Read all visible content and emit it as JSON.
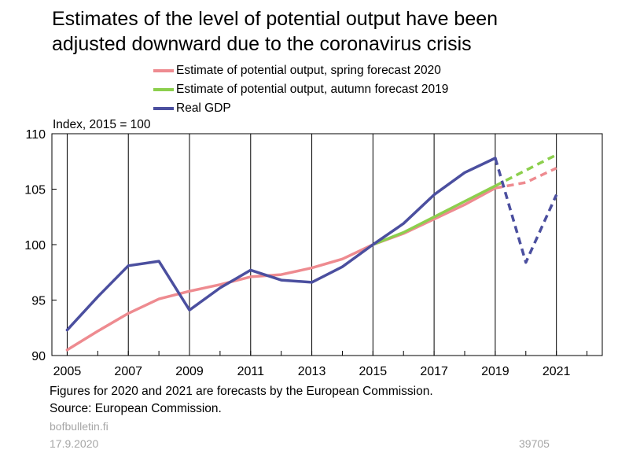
{
  "colors": {
    "spring": "#ee8b90",
    "autumn": "#8ccf4d",
    "gdp": "#4b4f9f"
  },
  "chart_data": {
    "type": "line",
    "title": "Estimates of the level of potential output have been adjusted downward due to the coronavirus crisis",
    "title_lines": [
      "Estimates of the level of potential output have been",
      "adjusted downward due to the coronavirus crisis"
    ],
    "ylabel": "Index, 2015 = 100",
    "ylim": [
      90,
      110
    ],
    "yticks": [
      "90",
      "95",
      "100",
      "105",
      "110"
    ],
    "xlim": [
      2004.5,
      2022.5
    ],
    "xticks": [
      "2005",
      "2007",
      "2009",
      "2011",
      "2013",
      "2015",
      "2017",
      "2019",
      "2021"
    ],
    "grid": "vertical at labeled years",
    "legend_position": "top",
    "forecast_from": 2019,
    "series": [
      {
        "name": "Estimate of potential output, spring forecast 2020",
        "color_key": "spring",
        "x": [
          2005,
          2006,
          2007,
          2008,
          2009,
          2010,
          2011,
          2012,
          2013,
          2014,
          2015,
          2016,
          2017,
          2018,
          2019,
          2020,
          2021
        ],
        "values": [
          90.5,
          92.2,
          93.8,
          95.1,
          95.8,
          96.4,
          97.1,
          97.3,
          97.9,
          98.7,
          100.0,
          101.0,
          102.3,
          103.6,
          105.1,
          105.6,
          106.9
        ]
      },
      {
        "name": "Estimate of potential output, autumn forecast 2019",
        "color_key": "autumn",
        "x": [
          2015,
          2016,
          2017,
          2018,
          2019,
          2020,
          2021
        ],
        "values": [
          100.0,
          101.1,
          102.5,
          103.9,
          105.3,
          106.7,
          108.1
        ]
      },
      {
        "name": "Real GDP",
        "color_key": "gdp",
        "x": [
          2005,
          2006,
          2007,
          2008,
          2009,
          2010,
          2011,
          2012,
          2013,
          2014,
          2015,
          2016,
          2017,
          2018,
          2019,
          2020,
          2021
        ],
        "values": [
          92.3,
          95.3,
          98.1,
          98.5,
          94.1,
          96.1,
          97.7,
          96.8,
          96.6,
          98.0,
          100.0,
          101.9,
          104.5,
          106.5,
          107.8,
          98.4,
          104.5
        ]
      }
    ]
  },
  "footnotes": [
    "Figures for 2020 and 2021 are forecasts by the European Commission.",
    "Source: European Commission."
  ],
  "site": "bofbulletin.fi",
  "date": "17.9.2020",
  "chart_id": "39705"
}
